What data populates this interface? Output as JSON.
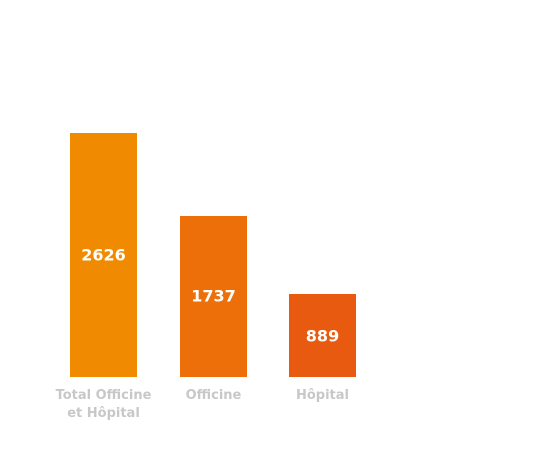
{
  "chart_data": {
    "type": "bar",
    "categories": [
      "Total Officine et Hôpital",
      "Officine",
      "Hôpital"
    ],
    "values": [
      2626,
      1737,
      889
    ],
    "colors": [
      "#f08a00",
      "#ec6f0a",
      "#e85a10"
    ]
  }
}
